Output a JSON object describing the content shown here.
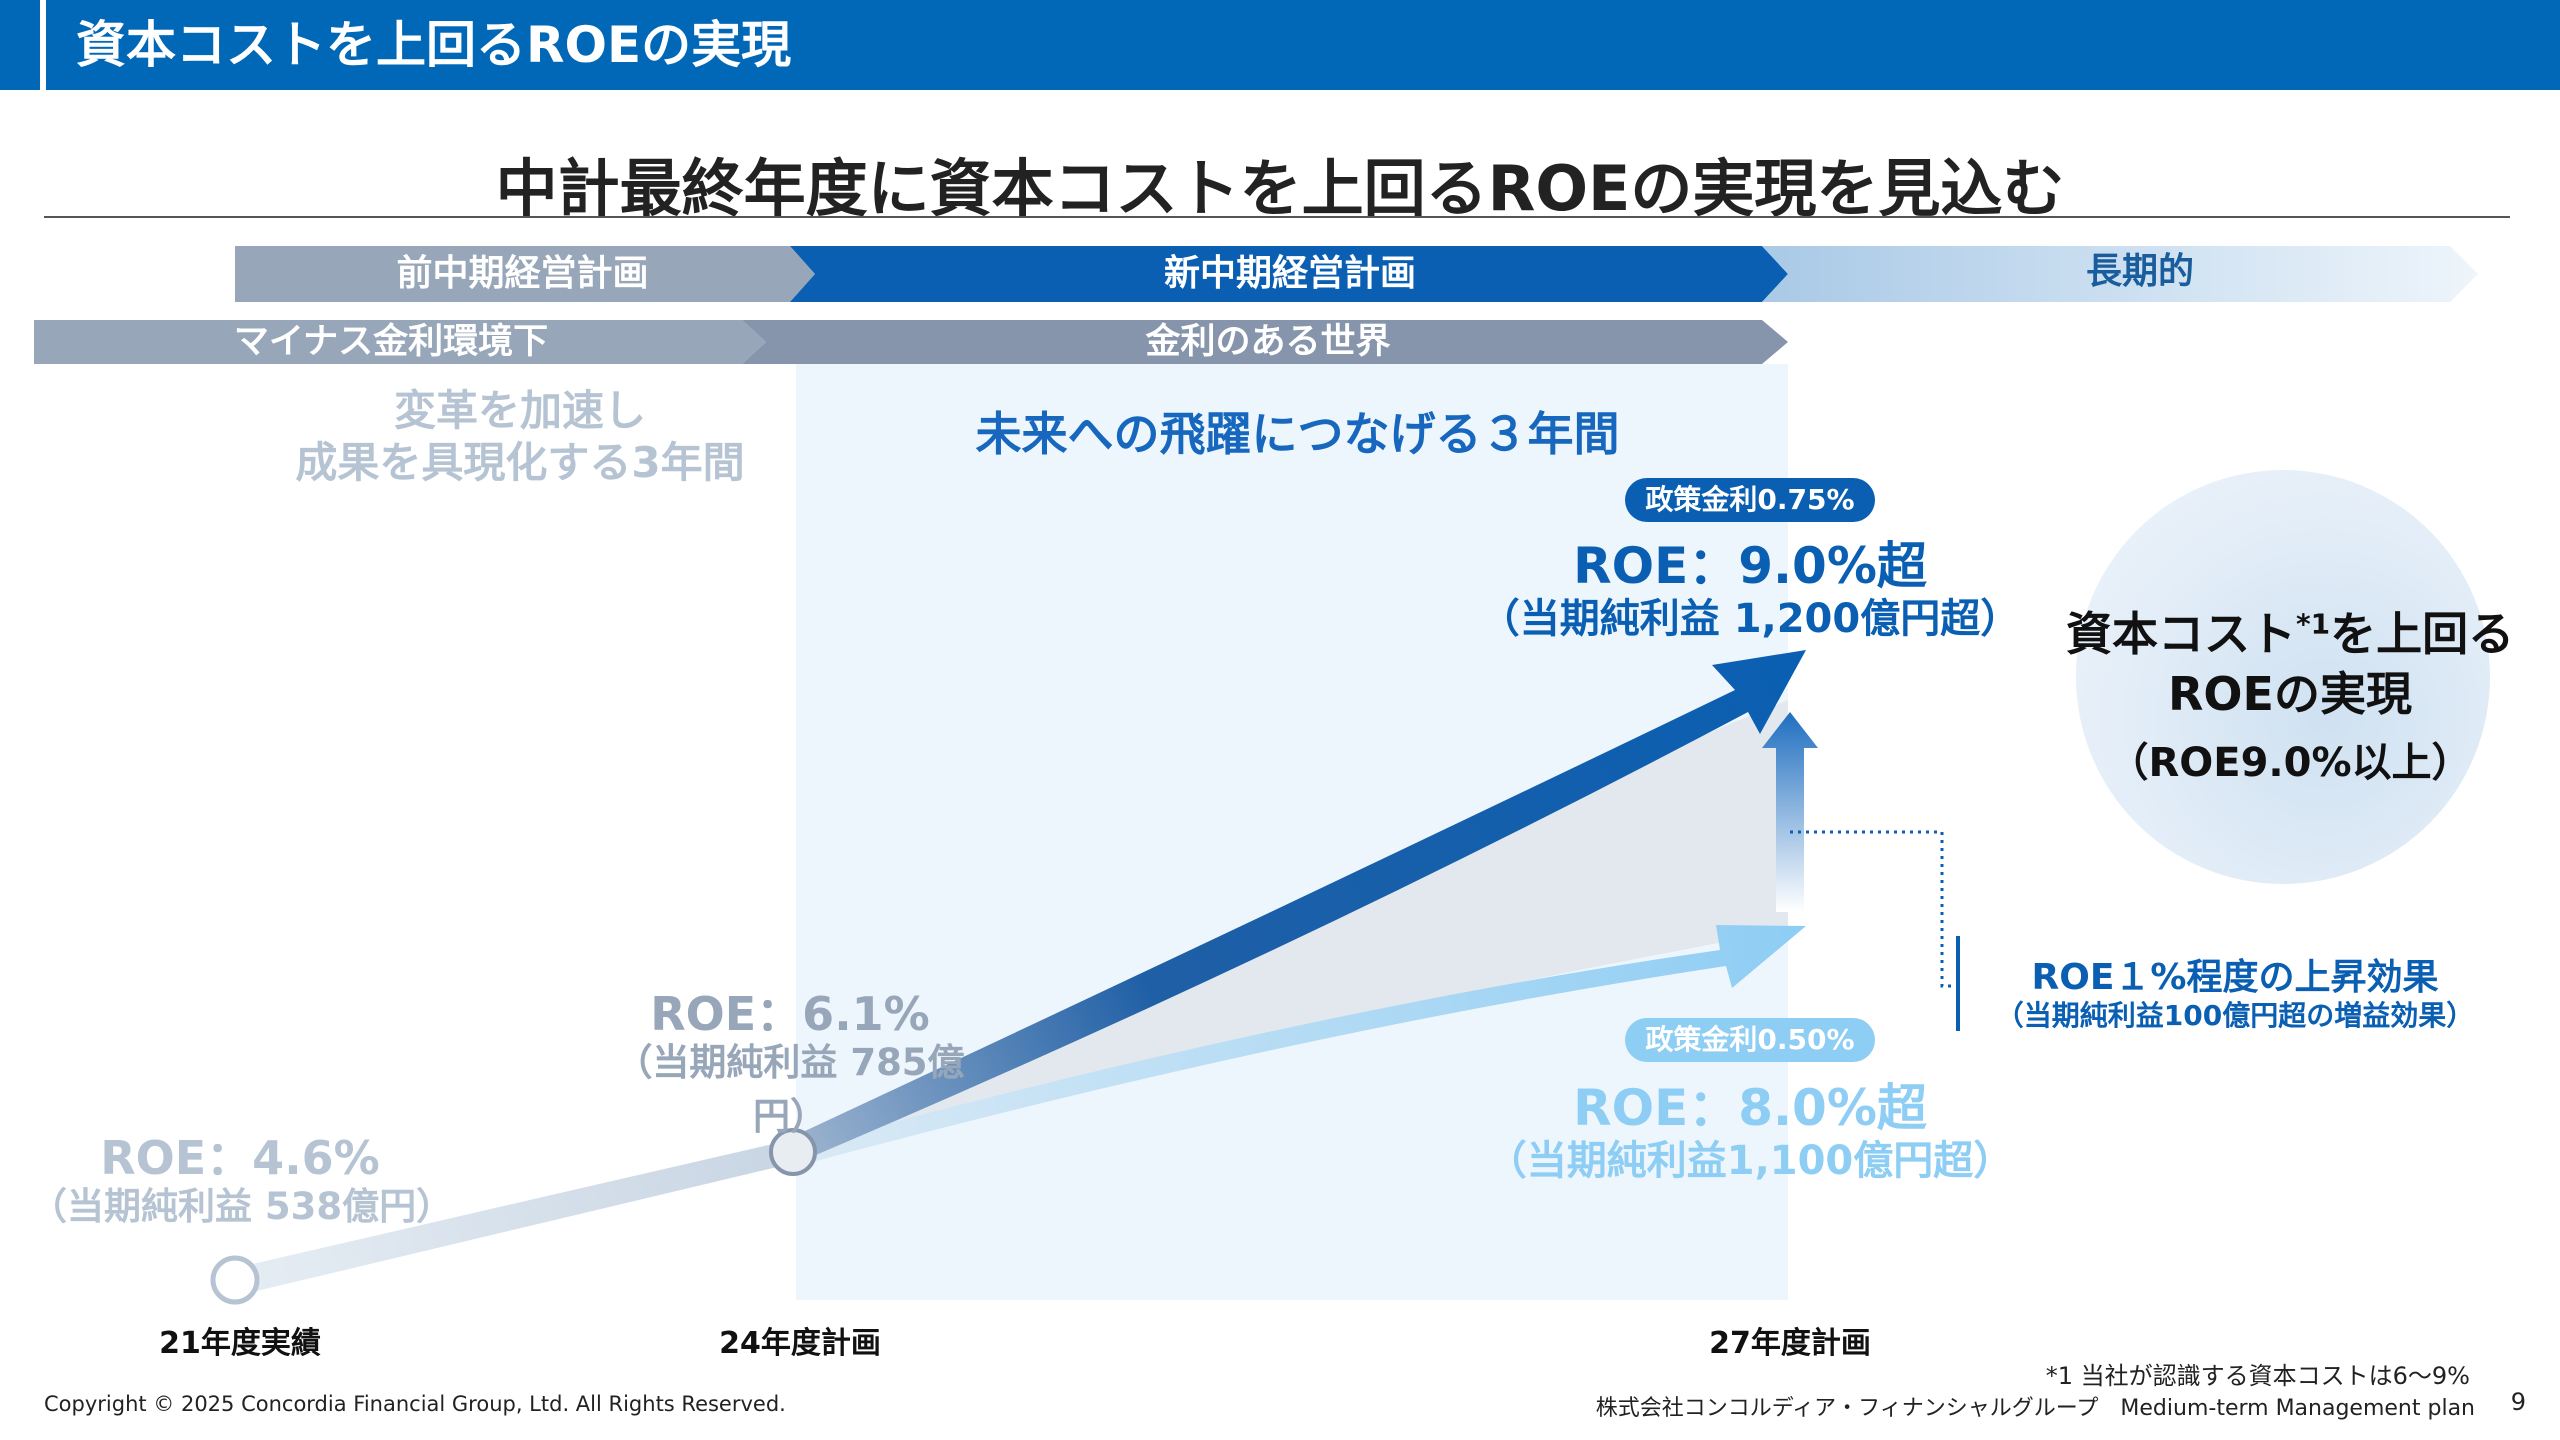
{
  "header": {
    "title": "資本コストを上回るROEの実現"
  },
  "main_heading": "中計最終年度に資本コストを上回るROEの実現を見込む",
  "bands": {
    "prev_plan": "前中期経営計画",
    "new_plan": "新中期経営計画",
    "long_term": "長期的",
    "minus_rate": "マイナス金利環境下",
    "rate_world": "金利のある世界"
  },
  "accel_text": {
    "line1": "変革を加速し",
    "line2": "成果を具現化する3年間"
  },
  "three_years": "未来への飛躍につなげる３年間",
  "fy27_high": {
    "policy_rate": "政策金利0.75%",
    "roe": "ROE：9.0%超",
    "profit": "（当期純利益 1,200億円超）"
  },
  "fy27_low": {
    "policy_rate": "政策金利0.50%",
    "roe": "ROE：8.0%超",
    "profit": "（当期純利益1,100億円超）"
  },
  "fy24": {
    "roe": "ROE：6.1%",
    "profit": "（当期純利益 785億円）"
  },
  "fy21": {
    "roe": "ROE：4.6%",
    "profit": "（当期純利益 538億円）"
  },
  "goal": {
    "line1_main": "資本コスト",
    "line1_sup": "*1",
    "line1_rest": "を上回る",
    "line2": "ROEの実現",
    "line3": "（ROE9.0%以上）"
  },
  "effect": {
    "title": "ROE１%程度の上昇効果",
    "sub": "（当期純利益100億円超の増益効果）"
  },
  "axis": {
    "fy21": "21年度実績",
    "fy24": "24年度計画",
    "fy27": "27年度計画"
  },
  "footnote": "*1 当社が認識する資本コストは6～9%",
  "footer": {
    "copyright": "Copyright © 2025 Concordia Financial Group, Ltd. All Rights Reserved.",
    "company": "株式会社コンコルディア・フィナンシャルグループ　Medium-term Management plan",
    "page": "9"
  },
  "colors": {
    "brand_blue": "#0068b7",
    "dark_blue": "#0a5fb2",
    "light_blue": "#8ecdf4",
    "gray_band": "#97a6b8"
  }
}
